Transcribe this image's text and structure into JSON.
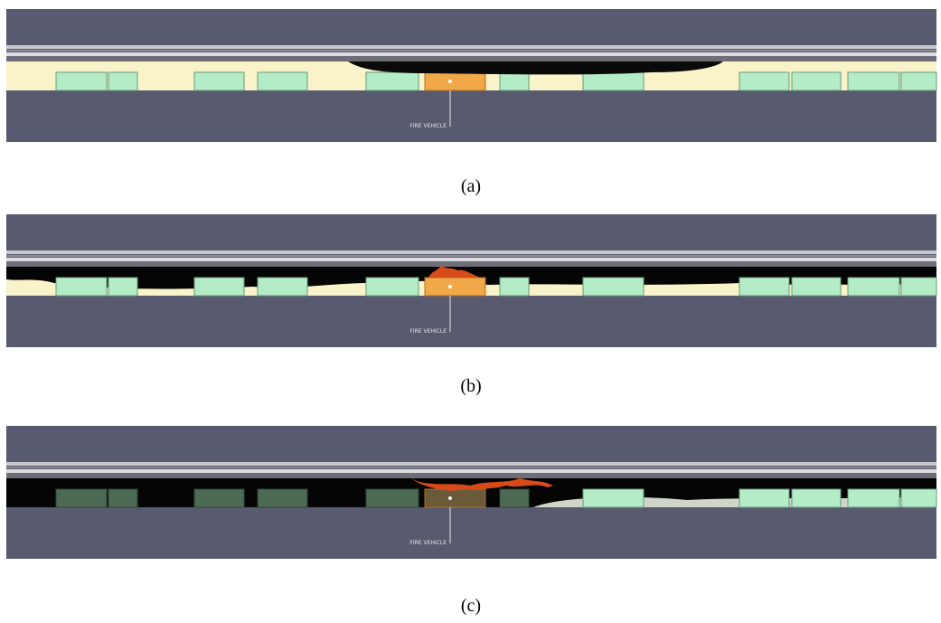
{
  "panels": [
    {
      "label": "FIRE VEHICLE",
      "caption": "(a)"
    },
    {
      "label": "FIRE VEHICLE",
      "caption": "(b)"
    },
    {
      "label": "FIRE VEHICLE",
      "caption": "(c)"
    }
  ]
}
